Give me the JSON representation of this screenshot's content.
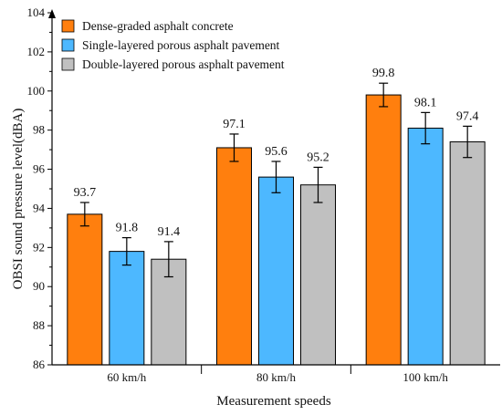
{
  "chart_data": {
    "type": "bar",
    "xlabel": "Measurement speeds",
    "ylabel": "OBSI sound pressure level(dBA)",
    "categories": [
      "60 km/h",
      "80 km/h",
      "100 km/h"
    ],
    "ylim": [
      86,
      104
    ],
    "yticks": [
      86,
      88,
      90,
      92,
      94,
      96,
      98,
      100,
      102,
      104
    ],
    "grid": false,
    "legend_position": "top-left",
    "series": [
      {
        "name": "Dense-graded asphalt concrete",
        "color": "#ff7f0e",
        "values": [
          93.7,
          97.1,
          99.8
        ],
        "labels": [
          "93.7",
          "97.1",
          "99.8"
        ],
        "error": [
          0.6,
          0.7,
          0.6
        ]
      },
      {
        "name": "Single-layered porous asphalt pavement",
        "color": "#4db8ff",
        "values": [
          91.8,
          95.6,
          98.1
        ],
        "labels": [
          "91.8",
          "95.6",
          "98.1"
        ],
        "error": [
          0.7,
          0.8,
          0.8
        ]
      },
      {
        "name": "Double-layered porous asphalt pavement",
        "color": "#c0c0c0",
        "values": [
          91.4,
          95.2,
          97.4
        ],
        "labels": [
          "91.4",
          "95.2",
          "97.4"
        ],
        "error": [
          0.9,
          0.9,
          0.8
        ]
      }
    ]
  }
}
